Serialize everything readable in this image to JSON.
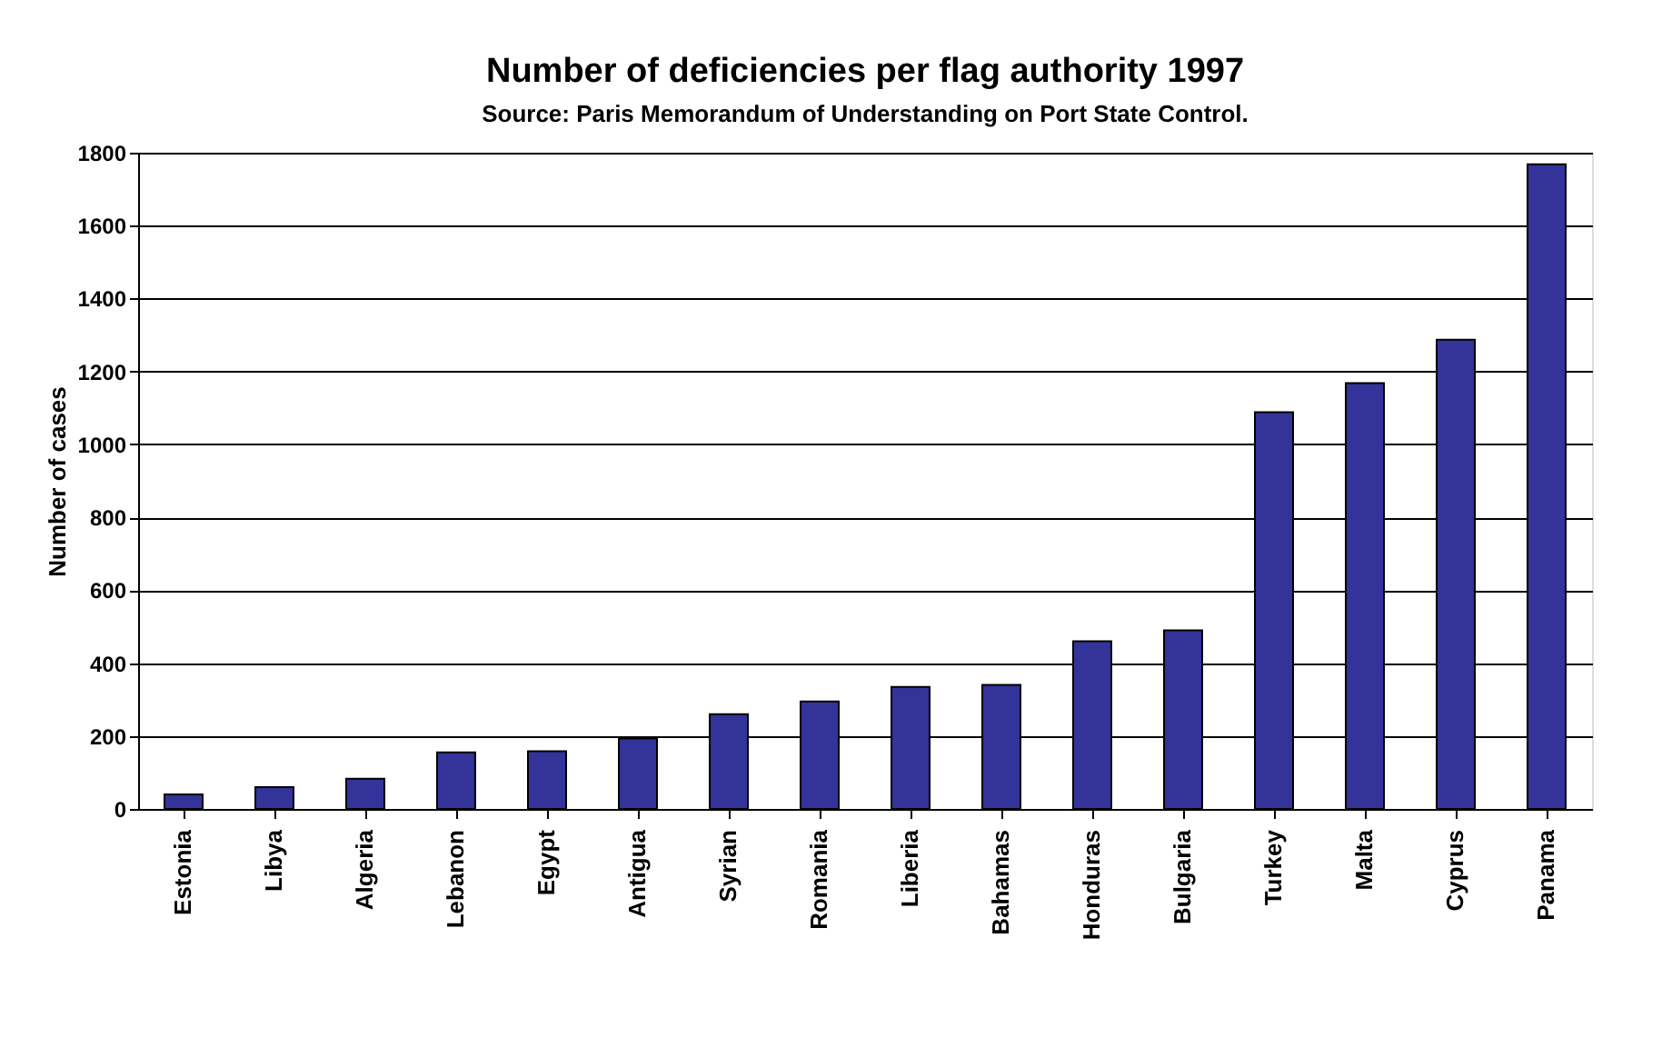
{
  "chart_data": {
    "type": "bar",
    "title": "Number of deficiencies per flag authority 1997",
    "subtitle": "Source: Paris Memorandum of Understanding on Port State Control.",
    "ylabel": "Number of cases",
    "categories": [
      "Estonia",
      "Libya",
      "Algeria",
      "Lebanon",
      "Egypt",
      "Antigua",
      "Syrian",
      "Romania",
      "Liberia",
      "Bahamas",
      "Honduras",
      "Bulgaria",
      "Turkey",
      "Malta",
      "Cyprus",
      "Panama"
    ],
    "values": [
      40,
      60,
      83,
      155,
      158,
      193,
      260,
      295,
      335,
      340,
      460,
      490,
      1088,
      1168,
      1287,
      1768
    ],
    "color": "#333399",
    "ylim": [
      0,
      1800
    ],
    "yticks": [
      0,
      200,
      400,
      600,
      800,
      1000,
      1200,
      1400,
      1600,
      1800
    ],
    "grid": "y"
  }
}
